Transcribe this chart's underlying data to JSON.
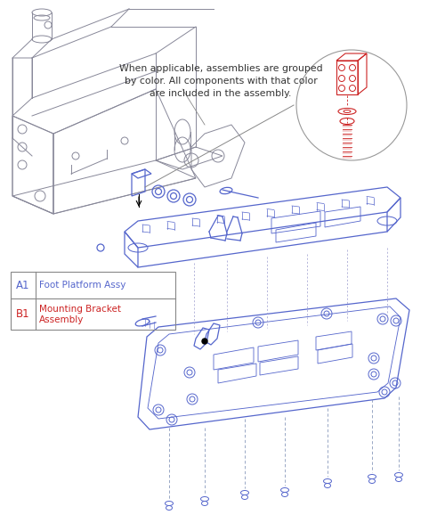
{
  "bg_color": "#ffffff",
  "blue": "#5566CC",
  "dark_blue": "#334499",
  "red": "#CC2222",
  "gray": "#999999",
  "frame_color": "#888899",
  "annotation_text": "When applicable, assemblies are grouped\nby color. All components with that color\nare included in the assembly.",
  "legend_items": [
    {
      "code": "A1",
      "label": "Foot Platform Assy",
      "color": "#5566CC"
    },
    {
      "code": "B1",
      "label": "Mounting Bracket\nAssembly",
      "color": "#CC2222"
    }
  ],
  "fig_width": 5.0,
  "fig_height": 5.87,
  "dpi": 100
}
